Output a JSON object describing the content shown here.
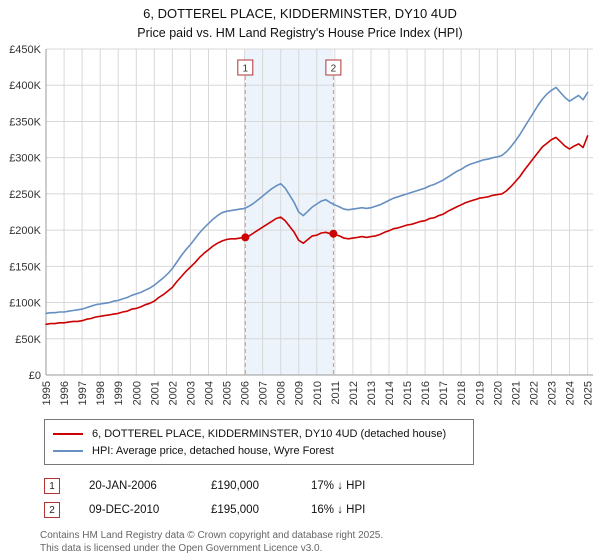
{
  "header": {
    "title": "6, DOTTEREL PLACE, KIDDERMINSTER, DY10 4UD",
    "subtitle": "Price paid vs. HM Land Registry's House Price Index (HPI)"
  },
  "chart_data": {
    "type": "line",
    "unit": "GBP thousands",
    "x_start": 1995,
    "x_step": 0.25,
    "ylim": [
      0,
      450
    ],
    "grid": true,
    "x_ticks": [
      1995,
      1996,
      1997,
      1998,
      1999,
      2000,
      2001,
      2002,
      2003,
      2004,
      2005,
      2006,
      2007,
      2008,
      2009,
      2010,
      2011,
      2012,
      2013,
      2014,
      2015,
      2016,
      2017,
      2018,
      2019,
      2020,
      2021,
      2022,
      2023,
      2024,
      2025
    ],
    "y_ticks": [
      {
        "value": 0,
        "label": "£0"
      },
      {
        "value": 50,
        "label": "£50K"
      },
      {
        "value": 100,
        "label": "£100K"
      },
      {
        "value": 150,
        "label": "£150K"
      },
      {
        "value": 200,
        "label": "£200K"
      },
      {
        "value": 250,
        "label": "£250K"
      },
      {
        "value": 300,
        "label": "£300K"
      },
      {
        "value": 350,
        "label": "£350K"
      },
      {
        "value": 400,
        "label": "£400K"
      },
      {
        "value": 450,
        "label": "£450K"
      }
    ],
    "series": [
      {
        "name": "6, DOTTEREL PLACE, KIDDERMINSTER, DY10 4UD (detached house)",
        "color": "#cc0000",
        "values": [
          70,
          71,
          71,
          72,
          72,
          73,
          74,
          74,
          75,
          77,
          78,
          80,
          81,
          82,
          83,
          84,
          85,
          87,
          88,
          91,
          92,
          94,
          97,
          99,
          102,
          107,
          111,
          116,
          121,
          129,
          136,
          143,
          149,
          155,
          162,
          168,
          173,
          178,
          182,
          185,
          187,
          188,
          188,
          189,
          190,
          192,
          196,
          200,
          204,
          208,
          212,
          216,
          218,
          213,
          205,
          197,
          186,
          182,
          187,
          192,
          193,
          196,
          197,
          195,
          194,
          192,
          189,
          188,
          189,
          190,
          191,
          190,
          191,
          192,
          194,
          197,
          199,
          202,
          203,
          205,
          207,
          208,
          210,
          212,
          213,
          216,
          217,
          220,
          222,
          226,
          229,
          232,
          235,
          238,
          240,
          242,
          244,
          245,
          246,
          248,
          249,
          250,
          254,
          260,
          267,
          274,
          283,
          291,
          299,
          307,
          315,
          320,
          325,
          328,
          322,
          316,
          312,
          316,
          319,
          314,
          330
        ]
      },
      {
        "name": "HPI: Average price, detached house, Wyre Forest",
        "color": "#6690c2",
        "values": [
          85,
          86,
          86,
          87,
          87,
          88,
          89,
          90,
          91,
          93,
          95,
          97,
          98,
          99,
          100,
          102,
          103,
          105,
          107,
          110,
          112,
          114,
          117,
          120,
          124,
          129,
          134,
          140,
          147,
          156,
          165,
          173,
          180,
          188,
          196,
          203,
          209,
          215,
          220,
          224,
          226,
          227,
          228,
          229,
          230,
          233,
          237,
          242,
          247,
          252,
          257,
          261,
          264,
          258,
          248,
          238,
          225,
          220,
          226,
          232,
          236,
          240,
          242,
          238,
          235,
          232,
          229,
          228,
          229,
          230,
          231,
          230,
          231,
          233,
          235,
          238,
          241,
          244,
          246,
          248,
          250,
          252,
          254,
          256,
          258,
          261,
          263,
          266,
          269,
          273,
          277,
          281,
          284,
          288,
          291,
          293,
          295,
          297,
          298,
          300,
          301,
          303,
          308,
          315,
          323,
          332,
          342,
          352,
          362,
          372,
          381,
          388,
          393,
          397,
          390,
          383,
          378,
          382,
          386,
          380,
          390
        ]
      }
    ],
    "markers": [
      {
        "label": "1",
        "x": 2006.04,
        "y": 190
      },
      {
        "label": "2",
        "x": 2010.92,
        "y": 195
      }
    ],
    "shaded_region": {
      "from": 2006.04,
      "to": 2010.92,
      "color": "#edf3fb"
    },
    "dashed_line_color": "#dd8f8f",
    "flag_border_color": "#b03434"
  },
  "transactions": [
    {
      "num": "1",
      "date": "20-JAN-2006",
      "price": "£190,000",
      "hpi": "17% ↓ HPI"
    },
    {
      "num": "2",
      "date": "09-DEC-2010",
      "price": "£195,000",
      "hpi": "16% ↓ HPI"
    }
  ],
  "footer": {
    "line1": "Contains HM Land Registry data © Crown copyright and database right 2025.",
    "line2": "This data is licensed under the Open Government Licence v3.0."
  }
}
